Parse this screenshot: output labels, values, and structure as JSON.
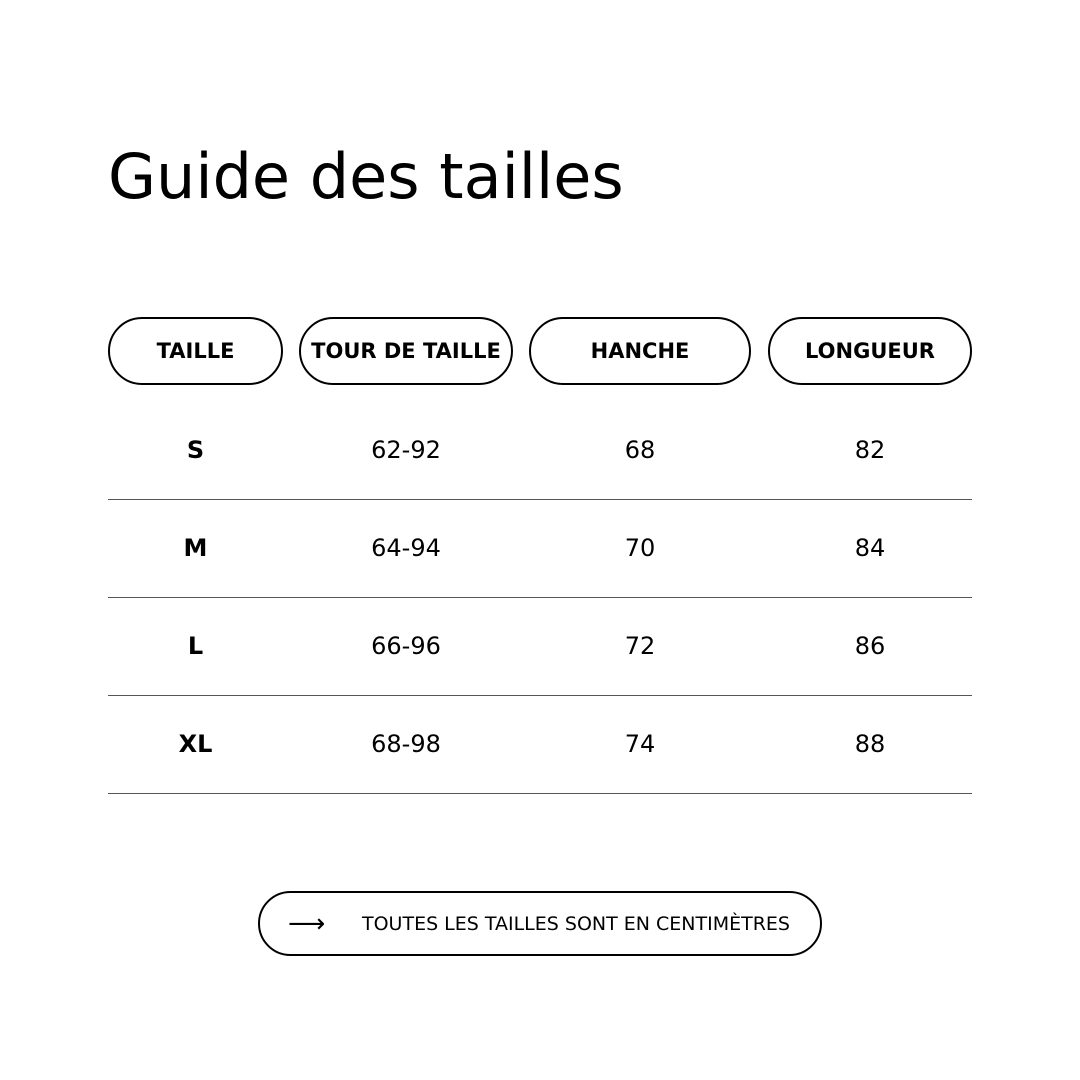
{
  "title": "Guide des tailles",
  "headers": [
    "TAILLE",
    "TOUR DE TAILLE",
    "HANCHE",
    "LONGUEUR"
  ],
  "rows": [
    [
      "S",
      "62-92",
      "68",
      "82"
    ],
    [
      "M",
      "64-94",
      "70",
      "84"
    ],
    [
      "L",
      "66-96",
      "72",
      "86"
    ],
    [
      "XL",
      "68-98",
      "74",
      "88"
    ]
  ],
  "note": {
    "icon": "arrow-right-icon",
    "text": "TOUTES LES TAILLES SONT EN CENTIMÈTRES"
  }
}
